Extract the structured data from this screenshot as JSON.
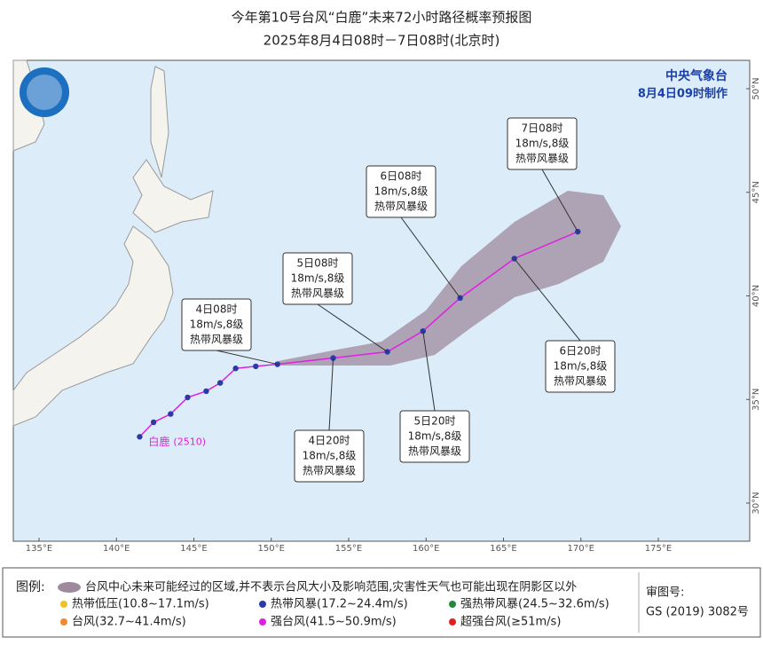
{
  "header": {
    "title": "今年第10号台风“白鹿”未来72小时路径概率预报图",
    "subtitle": "2025年8月4日08时－7日08时(北京时)"
  },
  "agency": {
    "name": "中央气象台",
    "issued": "8月4日09时制作"
  },
  "map": {
    "lon_ticks": [
      {
        "value": 135,
        "label": "135°E"
      },
      {
        "value": 140,
        "label": "140°E"
      },
      {
        "value": 145,
        "label": "145°E"
      },
      {
        "value": 150,
        "label": "150°E"
      },
      {
        "value": 155,
        "label": "155°E"
      },
      {
        "value": 160,
        "label": "160°E"
      },
      {
        "value": 165,
        "label": "165°E"
      },
      {
        "value": 170,
        "label": "170°E"
      },
      {
        "value": 175,
        "label": "175°E"
      }
    ],
    "lat_ticks": [
      {
        "value": 50,
        "label": "50°N"
      },
      {
        "value": 45,
        "label": "45°N"
      },
      {
        "value": 40,
        "label": "40°N"
      },
      {
        "value": 35,
        "label": "35°N"
      },
      {
        "value": 30,
        "label": "30°N"
      }
    ],
    "storm_name": "白鹿",
    "storm_code": "(2510)",
    "track_color": "#e020e0",
    "point_color": "#2a3aa8",
    "past_track": [
      {
        "lon": 141.5,
        "lat": 33.2
      },
      {
        "lon": 142.4,
        "lat": 33.9
      },
      {
        "lon": 143.5,
        "lat": 34.3
      },
      {
        "lon": 144.6,
        "lat": 35.1
      },
      {
        "lon": 145.8,
        "lat": 35.4
      },
      {
        "lon": 146.7,
        "lat": 35.8
      },
      {
        "lon": 147.7,
        "lat": 36.5
      },
      {
        "lon": 149.0,
        "lat": 36.6
      }
    ],
    "forecast": [
      {
        "time": "4日08时",
        "wind": "18m/s,8级",
        "grade": "热带风暴级",
        "lon": 150.4,
        "lat": 36.7
      },
      {
        "time": "4日20时",
        "wind": "18m/s,8级",
        "grade": "热带风暴级",
        "lon": 154.0,
        "lat": 37.0
      },
      {
        "time": "5日08时",
        "wind": "18m/s,8级",
        "grade": "热带风暴级",
        "lon": 157.5,
        "lat": 37.3
      },
      {
        "time": "5日20时",
        "wind": "18m/s,8级",
        "grade": "热带风暴级",
        "lon": 159.8,
        "lat": 38.3
      },
      {
        "time": "6日08时",
        "wind": "18m/s,8级",
        "grade": "热带风暴级",
        "lon": 162.2,
        "lat": 39.9
      },
      {
        "time": "6日20时",
        "wind": "18m/s,8级",
        "grade": "热带风暴级",
        "lon": 165.7,
        "lat": 41.8
      },
      {
        "time": "7日08时",
        "wind": "18m/s,8级",
        "grade": "热带风暴级",
        "lon": 169.8,
        "lat": 43.1
      }
    ]
  },
  "legend": {
    "title": "图例:",
    "cone": "台风中心未来可能经过的区域,并不表示台风大小及影响范围,灾害性天气也可能出现在阴影区以外",
    "items": [
      {
        "label": "热带低压(10.8~17.1m/s)",
        "color": "#f0c020"
      },
      {
        "label": "热带风暴(17.2~24.4m/s)",
        "color": "#2a3aa8"
      },
      {
        "label": "强热带风暴(24.5~32.6m/s)",
        "color": "#1e8a3a"
      },
      {
        "label": "台风(32.7~41.4m/s)",
        "color": "#f08a30"
      },
      {
        "label": "强台风(41.5~50.9m/s)",
        "color": "#e020e0"
      },
      {
        "label": "超强台风(≥51m/s)",
        "color": "#e02020"
      }
    ]
  },
  "approval": {
    "label": "审图号:",
    "number": "GS (2019) 3082号"
  }
}
